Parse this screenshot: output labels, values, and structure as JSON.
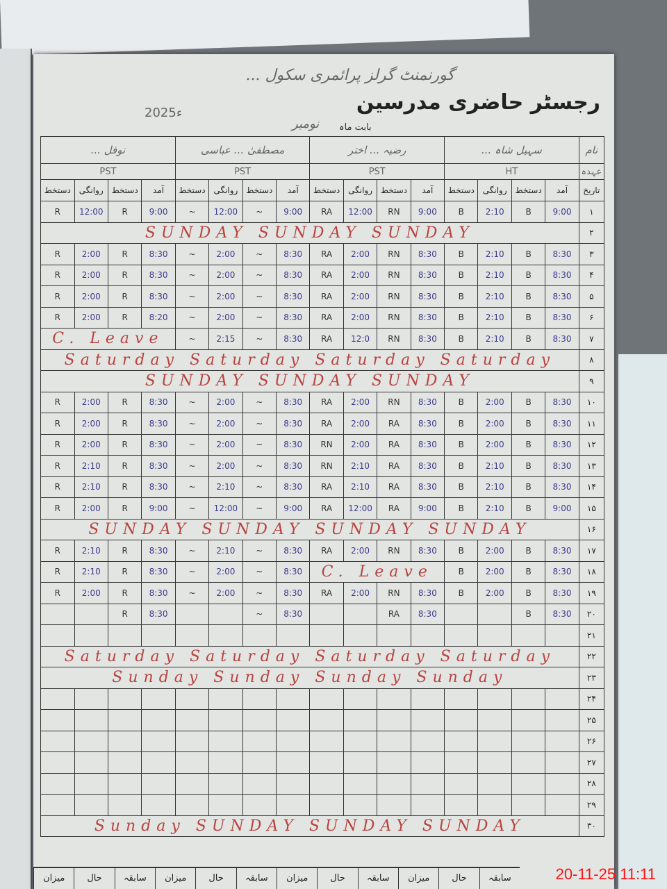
{
  "register": {
    "title": "رجسٹر حاضری مدرسین",
    "school": "گورنمنٹ گرلز پرائمری سکول ...",
    "year": "2025ء",
    "month_label": "بابت ماہ",
    "month": "نومبر",
    "name_label": "نام",
    "designation_label": "عہدہ",
    "date_label": "تاریخ",
    "column_labels": [
      "آمد",
      "دستخط",
      "روانگی",
      "دستخط"
    ]
  },
  "teachers": [
    {
      "name": "سہیل شاہ ...",
      "designation": "HT"
    },
    {
      "name": "رضیہ ... اختر",
      "designation": "PST"
    },
    {
      "name": "مصطفیٰ ... عباسی",
      "designation": "PST"
    },
    {
      "name": "نوفل ... ",
      "designation": "PST"
    }
  ],
  "days": [
    {
      "date": "۱",
      "entries": [
        [
          "9:00",
          "B",
          "2:10",
          "B"
        ],
        [
          "9:00",
          "RN",
          "12:00",
          "RA"
        ],
        [
          "9:00",
          "~",
          "12:00",
          "~"
        ],
        [
          "9:00",
          "R",
          "12:00",
          "R"
        ]
      ]
    },
    {
      "date": "۲",
      "note": "SUNDAY SUNDAY SUNDAY"
    },
    {
      "date": "۳",
      "entries": [
        [
          "8:30",
          "B",
          "2:10",
          "B"
        ],
        [
          "8:30",
          "RN",
          "2:00",
          "RA"
        ],
        [
          "8:30",
          "~",
          "2:00",
          "~"
        ],
        [
          "8:30",
          "R",
          "2:00",
          "R"
        ]
      ]
    },
    {
      "date": "۴",
      "entries": [
        [
          "8:30",
          "B",
          "2:10",
          "B"
        ],
        [
          "8:30",
          "RN",
          "2:00",
          "RA"
        ],
        [
          "8:30",
          "~",
          "2:00",
          "~"
        ],
        [
          "8:30",
          "R",
          "2:00",
          "R"
        ]
      ]
    },
    {
      "date": "۵",
      "entries": [
        [
          "8:30",
          "B",
          "2:10",
          "B"
        ],
        [
          "8:30",
          "RN",
          "2:00",
          "RA"
        ],
        [
          "8:30",
          "~",
          "2:00",
          "~"
        ],
        [
          "8:30",
          "R",
          "2:00",
          "R"
        ]
      ]
    },
    {
      "date": "۶",
      "entries": [
        [
          "8:30",
          "B",
          "2:10",
          "B"
        ],
        [
          "8:30",
          "RN",
          "2:00",
          "RA"
        ],
        [
          "8:30",
          "~",
          "2:00",
          "~"
        ],
        [
          "8:20",
          "R",
          "2:00",
          "R"
        ]
      ]
    },
    {
      "date": "۷",
      "entries": [
        [
          "8:30",
          "B",
          "2:10",
          "B"
        ],
        [
          "8:30",
          "RN",
          "12:0",
          "RA"
        ],
        [
          "8:30",
          "~",
          "2:15",
          "~"
        ],
        {
          "note": "C. Leave"
        }
      ]
    },
    {
      "date": "۸",
      "note": "Saturday Saturday Saturday Saturday"
    },
    {
      "date": "۹",
      "note": "SUNDAY SUNDAY SUNDAY"
    },
    {
      "date": "۱۰",
      "entries": [
        [
          "8:30",
          "B",
          "2:00",
          "B"
        ],
        [
          "8:30",
          "RN",
          "2:00",
          "RA"
        ],
        [
          "8:30",
          "~",
          "2:00",
          "~"
        ],
        [
          "8:30",
          "R",
          "2:00",
          "R"
        ]
      ]
    },
    {
      "date": "۱۱",
      "entries": [
        [
          "8:30",
          "B",
          "2:00",
          "B"
        ],
        [
          "8:30",
          "RA",
          "2:00",
          "RA"
        ],
        [
          "8:30",
          "~",
          "2:00",
          "~"
        ],
        [
          "8:30",
          "R",
          "2:00",
          "R"
        ]
      ]
    },
    {
      "date": "۱۲",
      "entries": [
        [
          "8:30",
          "B",
          "2:00",
          "B"
        ],
        [
          "8:30",
          "RA",
          "2:00",
          "RN"
        ],
        [
          "8:30",
          "~",
          "2:00",
          "~"
        ],
        [
          "8:30",
          "R",
          "2:00",
          "R"
        ]
      ]
    },
    {
      "date": "۱۳",
      "entries": [
        [
          "8:30",
          "B",
          "2:10",
          "B"
        ],
        [
          "8:30",
          "RA",
          "2:10",
          "RN"
        ],
        [
          "8:30",
          "~",
          "2:00",
          "~"
        ],
        [
          "8:30",
          "R",
          "2:10",
          "R"
        ]
      ]
    },
    {
      "date": "۱۴",
      "entries": [
        [
          "8:30",
          "B",
          "2:10",
          "B"
        ],
        [
          "8:30",
          "RA",
          "2:10",
          "RA"
        ],
        [
          "8:30",
          "~",
          "2:10",
          "~"
        ],
        [
          "8:30",
          "R",
          "2:10",
          "R"
        ]
      ]
    },
    {
      "date": "۱۵",
      "entries": [
        [
          "9:00",
          "B",
          "2:10",
          "B"
        ],
        [
          "9:00",
          "RA",
          "12:00",
          "RA"
        ],
        [
          "9:00",
          "~",
          "12:00",
          "~"
        ],
        [
          "9:00",
          "R",
          "2:00",
          "R"
        ]
      ]
    },
    {
      "date": "۱۶",
      "note": "SUNDAY SUNDAY SUNDAY SUNDAY"
    },
    {
      "date": "۱۷",
      "entries": [
        [
          "8:30",
          "B",
          "2:00",
          "B"
        ],
        [
          "8:30",
          "RN",
          "2:00",
          "RA"
        ],
        [
          "8:30",
          "~",
          "2:10",
          "~"
        ],
        [
          "8:30",
          "R",
          "2:10",
          "R"
        ]
      ]
    },
    {
      "date": "۱۸",
      "entries": [
        [
          "8:30",
          "B",
          "2:00",
          "B"
        ],
        {
          "note": "C. Leave"
        },
        [
          "8:30",
          "~",
          "2:00",
          "~"
        ],
        [
          "8:30",
          "R",
          "2:10",
          "R"
        ]
      ]
    },
    {
      "date": "۱۹",
      "entries": [
        [
          "8:30",
          "B",
          "2:00",
          "B"
        ],
        [
          "8:30",
          "RN",
          "2:00",
          "RA"
        ],
        [
          "8:30",
          "~",
          "2:00",
          "~"
        ],
        [
          "8:30",
          "R",
          "2:00",
          "R"
        ]
      ]
    },
    {
      "date": "۲۰",
      "entries": [
        [
          "8:30",
          "B",
          "",
          ""
        ],
        [
          "8:30",
          "RA",
          "",
          ""
        ],
        [
          "8:30",
          "~",
          "",
          ""
        ],
        [
          "8:30",
          "R",
          "",
          ""
        ]
      ]
    },
    {
      "date": "۲۱"
    },
    {
      "date": "۲۲",
      "note": "Saturday Saturday Saturday Saturday"
    },
    {
      "date": "۲۳",
      "note": "Sunday Sunday Sunday Sunday"
    },
    {
      "date": "۲۴"
    },
    {
      "date": "۲۵"
    },
    {
      "date": "۲۶"
    },
    {
      "date": "۲۷"
    },
    {
      "date": "۲۸"
    },
    {
      "date": "۲۹"
    },
    {
      "date": "۳۰",
      "note": "Sunday SUNDAY SUNDAY SUNDAY"
    }
  ],
  "footer": [
    "سابقہ",
    "حال",
    "میزان",
    "سابقہ",
    "حال",
    "میزان",
    "سابقہ",
    "حال",
    "میزان",
    "سابقہ",
    "حال",
    "میزان"
  ],
  "timestamp": "20-11-25  11:11"
}
